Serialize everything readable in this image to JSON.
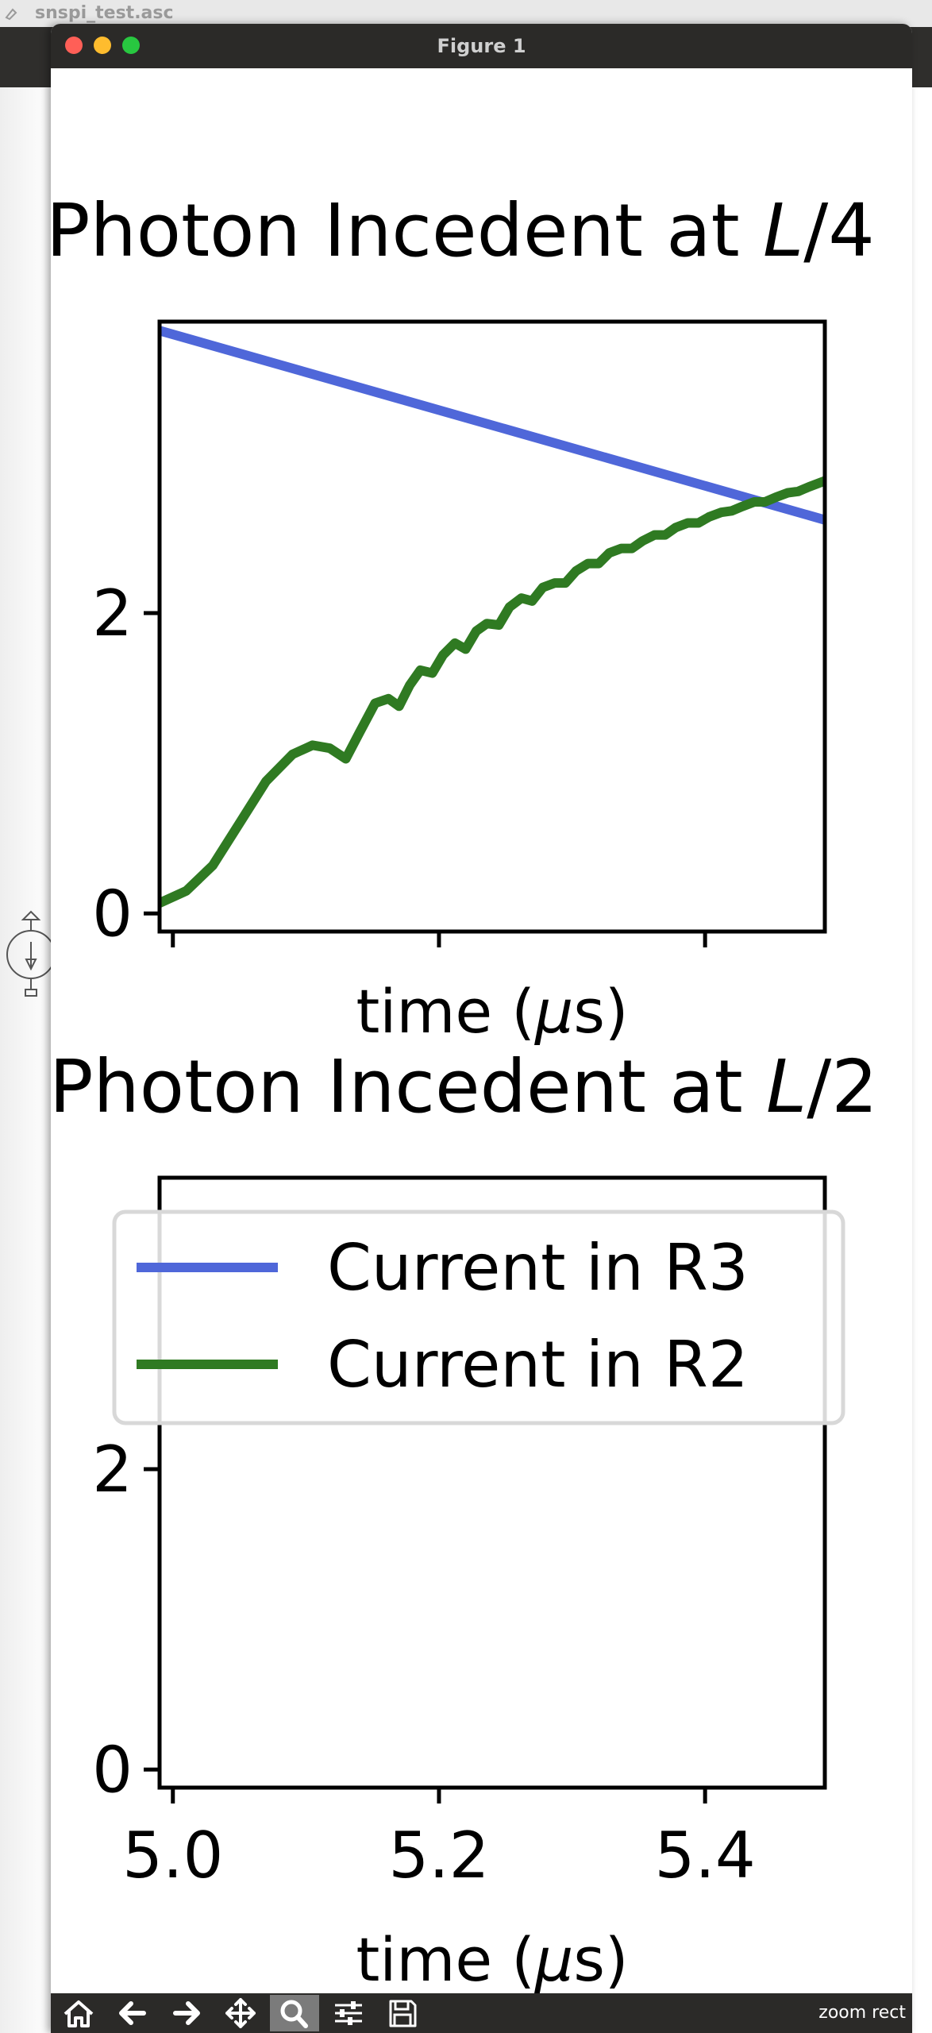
{
  "background": {
    "file_title": "snspi_test.asc"
  },
  "window": {
    "title": "Figure 1"
  },
  "toolbar": {
    "buttons": [
      {
        "name": "home",
        "icon": "home-icon"
      },
      {
        "name": "back",
        "icon": "arrow-left-icon"
      },
      {
        "name": "forward",
        "icon": "arrow-right-icon"
      },
      {
        "name": "pan",
        "icon": "move-icon"
      },
      {
        "name": "zoom",
        "icon": "magnifier-icon",
        "active": true
      },
      {
        "name": "configure-subplots",
        "icon": "sliders-icon"
      },
      {
        "name": "save",
        "icon": "floppy-disk-icon"
      }
    ],
    "status": "zoom rect"
  },
  "colors": {
    "r3": "#4f67d9",
    "r2": "#2f7a22"
  },
  "chart_data": [
    {
      "type": "line",
      "title_text": "Photon Incedent at ",
      "title_math": "L",
      "title_suffix": "/4",
      "xlabel_text": "time (",
      "xlabel_math": "μ",
      "xlabel_suffix": "s)",
      "xlim": [
        4.99,
        5.49
      ],
      "ylim": [
        -0.12,
        3.94
      ],
      "yticks": [
        "0",
        "2"
      ],
      "ytick_values": [
        0,
        2
      ],
      "xtick_values": [
        5.0,
        5.2,
        5.4
      ],
      "xtick_labels_visible": false,
      "series": [
        {
          "name": "Current in R3",
          "color": "#4f67d9",
          "points": [
            [
              4.99,
              3.88
            ],
            [
              5.49,
              2.62
            ]
          ]
        },
        {
          "name": "Current in R2",
          "color": "#2f7a22",
          "points": [
            [
              4.99,
              0.07
            ],
            [
              5.01,
              0.15
            ],
            [
              5.03,
              0.32
            ],
            [
              5.05,
              0.6
            ],
            [
              5.07,
              0.88
            ],
            [
              5.09,
              1.06
            ],
            [
              5.105,
              1.12
            ],
            [
              5.118,
              1.1
            ],
            [
              5.13,
              1.03
            ],
            [
              5.14,
              1.2
            ],
            [
              5.152,
              1.4
            ],
            [
              5.162,
              1.43
            ],
            [
              5.17,
              1.38
            ],
            [
              5.178,
              1.52
            ],
            [
              5.186,
              1.62
            ],
            [
              5.195,
              1.6
            ],
            [
              5.203,
              1.72
            ],
            [
              5.212,
              1.8
            ],
            [
              5.22,
              1.76
            ],
            [
              5.228,
              1.88
            ],
            [
              5.236,
              1.93
            ],
            [
              5.245,
              1.92
            ],
            [
              5.253,
              2.04
            ],
            [
              5.262,
              2.1
            ],
            [
              5.27,
              2.08
            ],
            [
              5.278,
              2.17
            ],
            [
              5.287,
              2.2
            ],
            [
              5.295,
              2.2
            ],
            [
              5.303,
              2.28
            ],
            [
              5.312,
              2.33
            ],
            [
              5.32,
              2.33
            ],
            [
              5.328,
              2.4
            ],
            [
              5.337,
              2.43
            ],
            [
              5.345,
              2.43
            ],
            [
              5.353,
              2.48
            ],
            [
              5.362,
              2.52
            ],
            [
              5.37,
              2.52
            ],
            [
              5.378,
              2.57
            ],
            [
              5.387,
              2.6
            ],
            [
              5.395,
              2.6
            ],
            [
              5.403,
              2.64
            ],
            [
              5.412,
              2.67
            ],
            [
              5.42,
              2.68
            ],
            [
              5.428,
              2.71
            ],
            [
              5.437,
              2.74
            ],
            [
              5.445,
              2.74
            ],
            [
              5.453,
              2.77
            ],
            [
              5.462,
              2.8
            ],
            [
              5.47,
              2.81
            ],
            [
              5.478,
              2.84
            ],
            [
              5.49,
              2.88
            ]
          ]
        }
      ]
    },
    {
      "type": "line",
      "title_text": "Photon Incedent at ",
      "title_math": "L",
      "title_suffix": "/2",
      "xlabel_text": "time (",
      "xlabel_math": "μ",
      "xlabel_suffix": "s)",
      "xlim": [
        4.99,
        5.49
      ],
      "ylim": [
        -0.12,
        3.94
      ],
      "yticks": [
        "0",
        "2"
      ],
      "ytick_values": [
        0,
        2
      ],
      "xticks": [
        "5.0",
        "5.2",
        "5.4"
      ],
      "xtick_values": [
        5.0,
        5.2,
        5.4
      ],
      "legend": {
        "placement": "upper-left",
        "entries": [
          "Current in R3",
          "Current in R2"
        ]
      },
      "series": []
    }
  ]
}
